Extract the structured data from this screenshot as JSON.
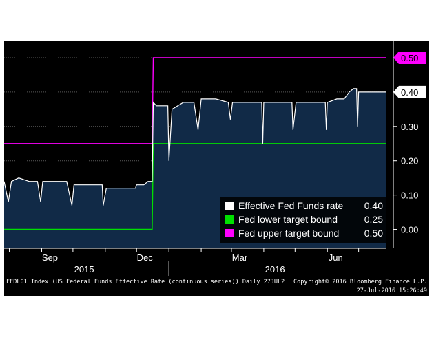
{
  "chart_data": {
    "type": "line",
    "title": "",
    "xlabel": "",
    "ylabel": "",
    "ylim": [
      -0.055,
      0.55
    ],
    "grid": true,
    "legend_position": "bottom-right",
    "x_ticks": [
      {
        "label": "Sep",
        "date": "2015-09-01"
      },
      {
        "label": "Dec",
        "date": "2015-12-01"
      },
      {
        "label": "Mar",
        "date": "2016-03-01"
      },
      {
        "label": "Jun",
        "date": "2016-06-01"
      }
    ],
    "x_years": [
      {
        "label": "2015",
        "date": "2015-10-15"
      },
      {
        "label": "2016",
        "date": "2016-04-15"
      }
    ],
    "y_ticks": [
      0.0,
      0.1,
      0.2,
      0.3,
      0.4,
      0.5
    ],
    "series": [
      {
        "name": "Effective Fed Funds rate",
        "color": "#ffffff",
        "last_value": "0.40",
        "points": [
          [
            "2015-07-27",
            0.14
          ],
          [
            "2015-07-31",
            0.08
          ],
          [
            "2015-08-03",
            0.14
          ],
          [
            "2015-08-10",
            0.15
          ],
          [
            "2015-08-20",
            0.14
          ],
          [
            "2015-08-28",
            0.14
          ],
          [
            "2015-08-31",
            0.08
          ],
          [
            "2015-09-02",
            0.14
          ],
          [
            "2015-09-15",
            0.14
          ],
          [
            "2015-09-25",
            0.14
          ],
          [
            "2015-09-30",
            0.07
          ],
          [
            "2015-10-02",
            0.13
          ],
          [
            "2015-10-15",
            0.13
          ],
          [
            "2015-10-29",
            0.13
          ],
          [
            "2015-10-30",
            0.07
          ],
          [
            "2015-11-02",
            0.12
          ],
          [
            "2015-11-15",
            0.12
          ],
          [
            "2015-11-27",
            0.12
          ],
          [
            "2015-11-30",
            0.12
          ],
          [
            "2015-12-01",
            0.13
          ],
          [
            "2015-12-08",
            0.13
          ],
          [
            "2015-12-12",
            0.14
          ],
          [
            "2015-12-16",
            0.14
          ],
          [
            "2015-12-17",
            0.37
          ],
          [
            "2015-12-20",
            0.36
          ],
          [
            "2015-12-31",
            0.36
          ],
          [
            "2016-01-01",
            0.2
          ],
          [
            "2016-01-04",
            0.35
          ],
          [
            "2016-01-15",
            0.37
          ],
          [
            "2016-01-25",
            0.37
          ],
          [
            "2016-01-29",
            0.29
          ],
          [
            "2016-02-01",
            0.38
          ],
          [
            "2016-02-15",
            0.38
          ],
          [
            "2016-02-27",
            0.37
          ],
          [
            "2016-02-29",
            0.32
          ],
          [
            "2016-03-02",
            0.37
          ],
          [
            "2016-03-15",
            0.37
          ],
          [
            "2016-03-30",
            0.37
          ],
          [
            "2016-03-31",
            0.25
          ],
          [
            "2016-04-01",
            0.37
          ],
          [
            "2016-04-15",
            0.37
          ],
          [
            "2016-04-28",
            0.37
          ],
          [
            "2016-04-29",
            0.29
          ],
          [
            "2016-05-02",
            0.37
          ],
          [
            "2016-05-15",
            0.37
          ],
          [
            "2016-05-30",
            0.37
          ],
          [
            "2016-05-31",
            0.29
          ],
          [
            "2016-06-01",
            0.37
          ],
          [
            "2016-06-10",
            0.38
          ],
          [
            "2016-06-17",
            0.38
          ],
          [
            "2016-06-22",
            0.4
          ],
          [
            "2016-06-26",
            0.41
          ],
          [
            "2016-06-29",
            0.41
          ],
          [
            "2016-06-30",
            0.3
          ],
          [
            "2016-07-01",
            0.4
          ],
          [
            "2016-07-27",
            0.4
          ]
        ]
      },
      {
        "name": "Fed lower target bound",
        "color": "#00e000",
        "last_value": "0.25",
        "points": [
          [
            "2015-07-27",
            0.0
          ],
          [
            "2015-12-16",
            0.0
          ],
          [
            "2015-12-17",
            0.25
          ],
          [
            "2016-07-27",
            0.25
          ]
        ]
      },
      {
        "name": "Fed upper target bound",
        "color": "#ff00ff",
        "last_value": "0.50",
        "points": [
          [
            "2015-07-27",
            0.25
          ],
          [
            "2015-12-16",
            0.25
          ],
          [
            "2015-12-17",
            0.5
          ],
          [
            "2016-07-27",
            0.5
          ]
        ]
      }
    ]
  },
  "footer": {
    "left": "FEDL01 Index (US Federal Funds Effective Rate (continuous series)) Daily 27JUL2",
    "copyright": "Copyright© 2016 Bloomberg Finance L.P.",
    "timestamp": "27-Jul-2016 15:26:49"
  }
}
